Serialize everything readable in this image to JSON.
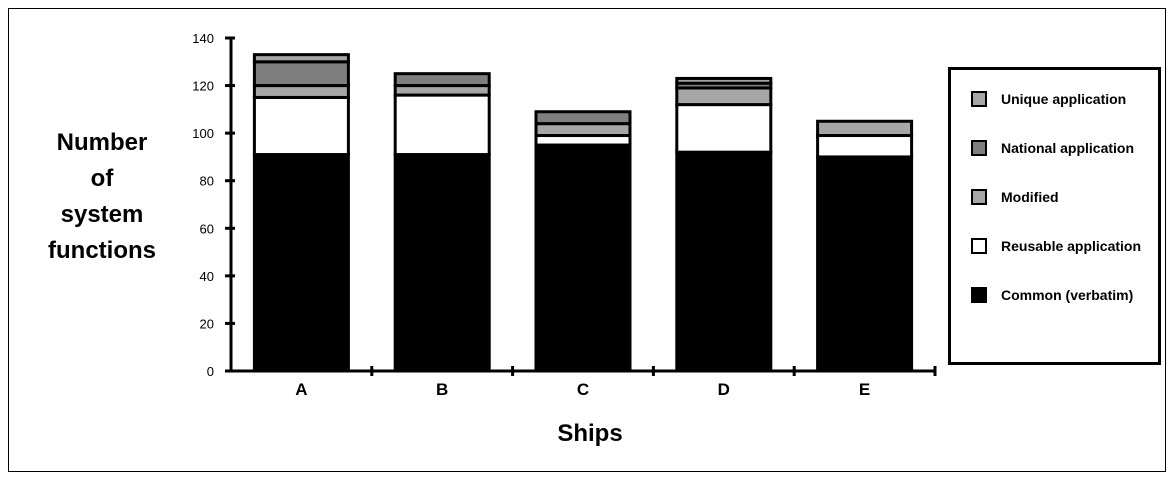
{
  "chart_data": {
    "type": "bar",
    "stacked": true,
    "title": "",
    "ylabel_lines": [
      "Number",
      "of",
      "system",
      "functions"
    ],
    "xlabel": "Ships",
    "categories": [
      "A",
      "B",
      "C",
      "D",
      "E"
    ],
    "ylim": [
      0,
      140
    ],
    "yticks": [
      "0",
      "20",
      "40",
      "60",
      "80",
      "100",
      "120",
      "140"
    ],
    "grid": false,
    "legend_position": "right",
    "series": [
      {
        "name": "Common (verbatim)",
        "color": "#000000",
        "values": [
          91,
          91,
          95,
          92,
          90
        ]
      },
      {
        "name": "Reusable application",
        "color": "#ffffff",
        "values": [
          24,
          25,
          4,
          20,
          9
        ]
      },
      {
        "name": "Modified",
        "color": "#a6a6a6",
        "values": [
          5,
          4,
          5,
          7,
          6
        ]
      },
      {
        "name": "National application",
        "color": "#7f7f7f",
        "values": [
          10,
          5,
          5,
          2,
          0
        ]
      },
      {
        "name": "Unique application",
        "color": "#a6a6a6",
        "values": [
          3,
          0,
          0,
          2,
          0
        ]
      }
    ]
  }
}
